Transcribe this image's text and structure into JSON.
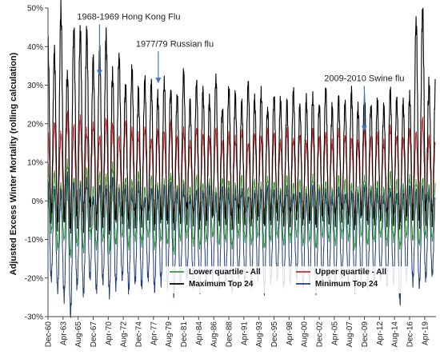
{
  "chart_data": {
    "type": "line",
    "title": "",
    "xlabel": "",
    "ylabel": "Adjusted Excess Winter Mortality (rolling calculation)",
    "ylim": [
      -30,
      50
    ],
    "ytick_values": [
      -30,
      -20,
      -10,
      0,
      10,
      20,
      30,
      40,
      50
    ],
    "ytick_labels": [
      "-30%",
      "-20%",
      "-10%",
      "0%",
      "10%",
      "20%",
      "30%",
      "40%",
      "50%"
    ],
    "x_start": 1960.92,
    "x_end": 2021.0,
    "grid": false,
    "legend_placement": "bottom",
    "x_tick_labels": [
      "Dec-60",
      "Apr-63",
      "Aug-65",
      "Dec-67",
      "Apr-70",
      "Aug-72",
      "Dec-74",
      "Apr-77",
      "Aug-79",
      "Dec-81",
      "Apr-84",
      "Aug-86",
      "Dec-88",
      "Apr-91",
      "Aug-93",
      "Dec-95",
      "Apr-98",
      "Aug-00",
      "Dec-02",
      "Apr-05",
      "Aug-07",
      "Dec-09",
      "Apr-12",
      "Aug-14",
      "Dec-16",
      "Apr-19"
    ],
    "x_tick_values": [
      1960.92,
      1963.25,
      1965.58,
      1967.92,
      1970.25,
      1972.58,
      1974.92,
      1977.25,
      1979.58,
      1981.92,
      1984.25,
      1986.58,
      1988.92,
      1991.25,
      1993.58,
      1995.92,
      1998.25,
      2000.58,
      2002.92,
      2005.25,
      2007.58,
      2009.92,
      2012.25,
      2014.58,
      2016.92,
      2019.25
    ],
    "series": [
      {
        "name": "Lower quartile - All",
        "color": "#2ca02c",
        "winter_peaks": [
          9,
          7,
          4,
          10,
          6,
          5,
          8,
          3,
          7,
          6,
          9,
          4,
          6,
          5,
          7,
          3,
          6,
          4,
          5,
          7,
          4,
          5,
          3,
          6,
          4,
          5,
          3,
          6,
          5,
          4,
          6,
          3,
          5,
          4,
          6,
          5,
          3,
          6,
          4,
          5,
          3,
          6,
          4,
          5,
          3,
          6,
          5,
          4,
          3,
          6,
          4,
          5,
          3,
          7,
          5,
          4,
          6,
          5,
          6,
          4
        ],
        "summer_troughs": [
          -8,
          -12,
          -10,
          -14,
          -11,
          -13,
          -9,
          -12,
          -10,
          -13,
          -11,
          -9,
          -12,
          -10,
          -11,
          -9,
          -12,
          -10,
          -11,
          -13,
          -10,
          -9,
          -11,
          -12,
          -10,
          -9,
          -11,
          -10,
          -12,
          -9,
          -10,
          -11,
          -9,
          -12,
          -10,
          -9,
          -11,
          -10,
          -9,
          -11,
          -10,
          -12,
          -9,
          -10,
          -11,
          -9,
          -10,
          -12,
          -9,
          -11,
          -10,
          -9,
          -11,
          -10,
          -12,
          -9,
          -10,
          -11,
          -9,
          -10
        ]
      },
      {
        "name": "Upper quartile - All",
        "color": "#d62728",
        "winter_peaks": [
          18,
          20,
          17,
          22,
          19,
          21,
          18,
          20,
          17,
          21,
          19,
          16,
          20,
          18,
          17,
          19,
          16,
          18,
          17,
          20,
          16,
          18,
          15,
          19,
          17,
          16,
          18,
          15,
          17,
          16,
          18,
          15,
          17,
          16,
          18,
          17,
          15,
          18,
          16,
          17,
          15,
          18,
          16,
          17,
          15,
          18,
          17,
          16,
          15,
          18,
          16,
          17,
          15,
          19,
          17,
          16,
          18,
          17,
          21,
          16
        ],
        "summer_troughs": [
          -2,
          -4,
          -3,
          -5,
          -3,
          -4,
          -2,
          -4,
          -3,
          -5,
          -3,
          -2,
          -4,
          -3,
          -3,
          -2,
          -4,
          -3,
          -3,
          -4,
          -3,
          -2,
          -3,
          -4,
          -3,
          -2,
          -3,
          -3,
          -4,
          -2,
          -3,
          -3,
          -2,
          -4,
          -3,
          -2,
          -3,
          -3,
          -2,
          -3,
          -3,
          -4,
          -2,
          -3,
          -3,
          -2,
          -3,
          -4,
          -2,
          -3,
          -3,
          -2,
          -3,
          -3,
          -4,
          -2,
          -3,
          -3,
          -2,
          -3
        ]
      },
      {
        "name": "Maximum Top 24",
        "color": "#000000",
        "winter_peaks": [
          41,
          38,
          49,
          33,
          45,
          44,
          43,
          36,
          39,
          42,
          33,
          38,
          30,
          34,
          28,
          31,
          30,
          27,
          31,
          29,
          27,
          33,
          25,
          30,
          28,
          26,
          32,
          24,
          29,
          27,
          25,
          30,
          26,
          28,
          24,
          27,
          26,
          25,
          28,
          24,
          26,
          27,
          25,
          29,
          24,
          26,
          25,
          28,
          24,
          27,
          25,
          26,
          24,
          28,
          26,
          25,
          27,
          47,
          50,
          30
        ],
        "summer_troughs": [
          -4,
          -6,
          -5,
          -7,
          -5,
          -6,
          -4,
          -6,
          -5,
          -7,
          -5,
          -4,
          -6,
          -5,
          -5,
          -4,
          -6,
          -5,
          -5,
          -6,
          -5,
          -4,
          -5,
          -6,
          -5,
          -4,
          -5,
          -5,
          -6,
          -4,
          -5,
          -5,
          -4,
          -6,
          -5,
          -4,
          -5,
          -5,
          -4,
          -5,
          -5,
          -6,
          -4,
          -5,
          -5,
          -4,
          -5,
          -6,
          -4,
          -5,
          -5,
          -4,
          -5,
          -5,
          -6,
          -4,
          -5,
          -5,
          -4,
          -5
        ]
      },
      {
        "name": "Minimum Top 24",
        "color": "#1f3b7a",
        "winter_peaks": [
          5,
          3,
          2,
          6,
          4,
          3,
          5,
          1,
          4,
          3,
          5,
          2,
          3,
          2,
          4,
          1,
          3,
          2,
          3,
          4,
          2,
          3,
          1,
          3,
          2,
          3,
          1,
          3,
          2,
          2,
          3,
          1,
          2,
          2,
          3,
          2,
          1,
          3,
          2,
          2,
          1,
          3,
          2,
          2,
          1,
          3,
          2,
          2,
          1,
          3,
          2,
          2,
          1,
          3,
          2,
          2,
          3,
          2,
          3,
          2
        ],
        "summer_troughs": [
          -20,
          -23,
          -25,
          -29,
          -22,
          -24,
          -20,
          -23,
          -21,
          -24,
          -22,
          -20,
          -23,
          -21,
          -22,
          -20,
          -23,
          -21,
          -22,
          -24,
          -21,
          -20,
          -22,
          -23,
          -21,
          -20,
          -22,
          -21,
          -23,
          -20,
          -21,
          -22,
          -20,
          -23,
          -21,
          -20,
          -22,
          -21,
          -20,
          -22,
          -21,
          -23,
          -20,
          -21,
          -22,
          -20,
          -21,
          -23,
          -20,
          -22,
          -21,
          -20,
          -22,
          -21,
          -26,
          -20,
          -21,
          -22,
          -20,
          -19
        ]
      }
    ],
    "annotations": [
      {
        "text": "1968-1969 Hong Kong Flu",
        "x": 1968.9,
        "y_text": 47,
        "y_arrow_end": 32.5
      },
      {
        "text": "1977/79 Russian flu",
        "x": 1978.0,
        "y_text": 40,
        "y_arrow_end": 30.5
      },
      {
        "text": "2009-2010 Swine flu",
        "x": 2009.9,
        "y_text": 31,
        "y_arrow_end": 18
      }
    ]
  }
}
